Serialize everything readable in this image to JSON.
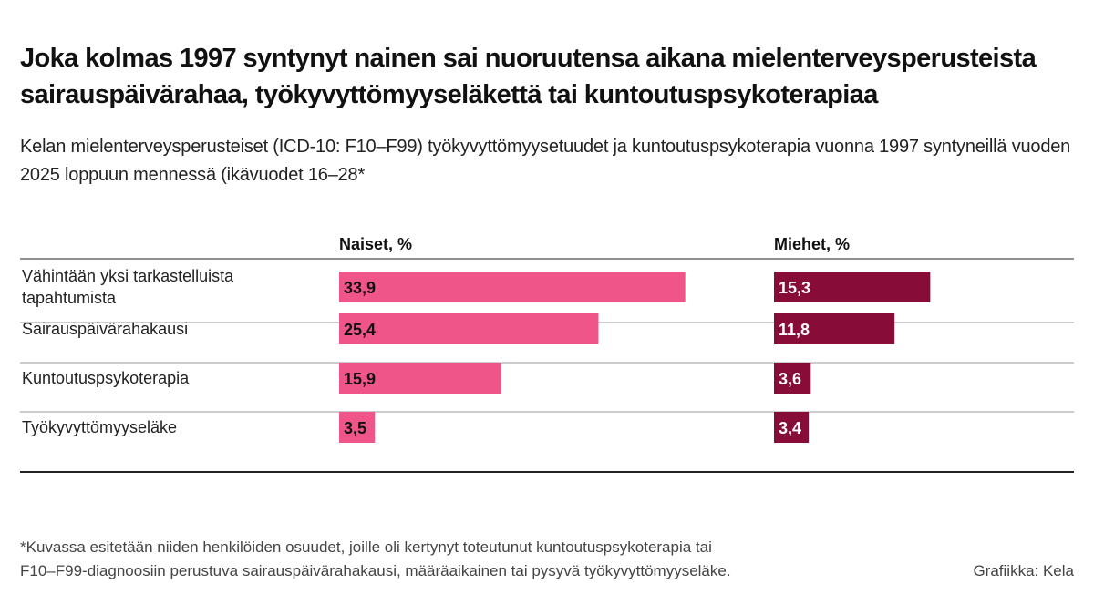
{
  "title": "Joka kolmas 1997 syntynyt nainen sai nuoruutensa aikana mielenterveysperusteista sairauspäivärahaa, työkyvyttömyyseläkettä tai kuntoutuspsykoterapiaa",
  "subtitle": "Kelan mielenterveysperusteiset (ICD-10: F10–F99) työkyvyttömyysetuudet ja kuntoutuspsykoterapia vuonna 1997 syntyneillä vuoden 2025 loppuun mennessä (ikävuodet 16–28*",
  "footnote_line1": "*Kuvassa esitetään niiden henkilöiden osuudet, joille oli kertynyt toteutunut kuntoutuspsykoterapia tai",
  "footnote_line2": "F10–F99-diagnoosiin perustuva sairauspäivärahakausi, määräaikainen tai pysyvä työkyvyttömyyseläke.",
  "credit": "Grafiikka: Kela",
  "colors": {
    "naiset": "#f0558a",
    "miehet": "#870c37",
    "rule": "#222222",
    "label_text": "#111111"
  },
  "chart_data": {
    "type": "bar",
    "orientation": "horizontal",
    "categories": [
      [
        "Vähintään yksi tarkastelluista",
        "tapahtumista"
      ],
      [
        "Sairauspäivärahakausi"
      ],
      [
        "Kuntoutuspsykoterapia"
      ],
      [
        "Työkyvyttömyyseläke"
      ]
    ],
    "series": [
      {
        "name": "Naiset, %",
        "values": [
          33.9,
          25.4,
          15.9,
          3.5
        ],
        "labels": [
          "33,9",
          "25,4",
          "15,9",
          "3,5"
        ]
      },
      {
        "name": "Miehet, %",
        "values": [
          15.3,
          11.8,
          3.6,
          3.4
        ],
        "labels": [
          "15,3",
          "11,8",
          "3,6",
          "3,4"
        ]
      }
    ],
    "xlim": [
      0,
      40
    ],
    "grid": false,
    "legend": "column headers"
  }
}
